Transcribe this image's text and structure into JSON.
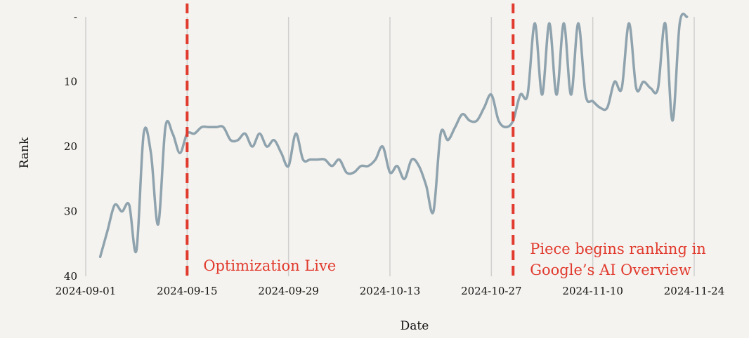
{
  "chart_data": {
    "type": "line",
    "title": "",
    "xlabel": "Date",
    "ylabel": "Rank",
    "x_ticks": [
      "2024-09-01",
      "2024-09-15",
      "2024-09-29",
      "2024-10-13",
      "2024-10-27",
      "2024-11-10",
      "2024-11-24"
    ],
    "y_ticks": [
      "-",
      "10",
      "20",
      "30",
      "40"
    ],
    "y_tick_values": [
      0,
      10,
      20,
      30,
      40
    ],
    "y_inverted": true,
    "xlim": [
      "2024-08-30",
      "2024-11-26"
    ],
    "ylim": [
      0,
      40
    ],
    "grid": "vertical",
    "line_color": "#8fa3ae",
    "marker_color": "#e13a2e",
    "series": [
      {
        "x": [
          "2024-09-03",
          "2024-09-04",
          "2024-09-05",
          "2024-09-06",
          "2024-09-07",
          "2024-09-08",
          "2024-09-09",
          "2024-09-10",
          "2024-09-11",
          "2024-09-12",
          "2024-09-13",
          "2024-09-14",
          "2024-09-15",
          "2024-09-16",
          "2024-09-17",
          "2024-09-18",
          "2024-09-19",
          "2024-09-20",
          "2024-09-21",
          "2024-09-22",
          "2024-09-23",
          "2024-09-24",
          "2024-09-25",
          "2024-09-26",
          "2024-09-27",
          "2024-09-28",
          "2024-09-29",
          "2024-09-30",
          "2024-10-01",
          "2024-10-02",
          "2024-10-03",
          "2024-10-04",
          "2024-10-05",
          "2024-10-06",
          "2024-10-07",
          "2024-10-08",
          "2024-10-09",
          "2024-10-10",
          "2024-10-11",
          "2024-10-12",
          "2024-10-13",
          "2024-10-14",
          "2024-10-15",
          "2024-10-16",
          "2024-10-17",
          "2024-10-18",
          "2024-10-19",
          "2024-10-20",
          "2024-10-21",
          "2024-10-22",
          "2024-10-23",
          "2024-10-24",
          "2024-10-25",
          "2024-10-26",
          "2024-10-27",
          "2024-10-28",
          "2024-10-29",
          "2024-10-30",
          "2024-10-31",
          "2024-11-01",
          "2024-11-02",
          "2024-11-03",
          "2024-11-04",
          "2024-11-05",
          "2024-11-06",
          "2024-11-07",
          "2024-11-08",
          "2024-11-09",
          "2024-11-10",
          "2024-11-11",
          "2024-11-12",
          "2024-11-13",
          "2024-11-14",
          "2024-11-15",
          "2024-11-16",
          "2024-11-17",
          "2024-11-18",
          "2024-11-19",
          "2024-11-20",
          "2024-11-21",
          "2024-11-22",
          "2024-11-23"
        ],
        "y": [
          37,
          33,
          29,
          30,
          29,
          36,
          18,
          21,
          32,
          17,
          18,
          21,
          18,
          18,
          17,
          17,
          17,
          17,
          19,
          19,
          18,
          20,
          18,
          20,
          19,
          21,
          23,
          18,
          22,
          22,
          22,
          22,
          23,
          22,
          24,
          24,
          23,
          23,
          22,
          20,
          24,
          23,
          25,
          22,
          23,
          26,
          30,
          18,
          19,
          17,
          15,
          16,
          16,
          14,
          12,
          16,
          17,
          16,
          12,
          12,
          1,
          12,
          1,
          12,
          1,
          12,
          1,
          12,
          13,
          14,
          14,
          10,
          11,
          1,
          11,
          10,
          11,
          11,
          1,
          16,
          1,
          0
        ]
      }
    ],
    "annotations": [
      {
        "date": "2024-09-15",
        "label": "Optimization Live"
      },
      {
        "date": "2024-10-30",
        "label_lines": [
          "Piece begins ranking in",
          "Google’s AI Overview"
        ]
      }
    ]
  }
}
